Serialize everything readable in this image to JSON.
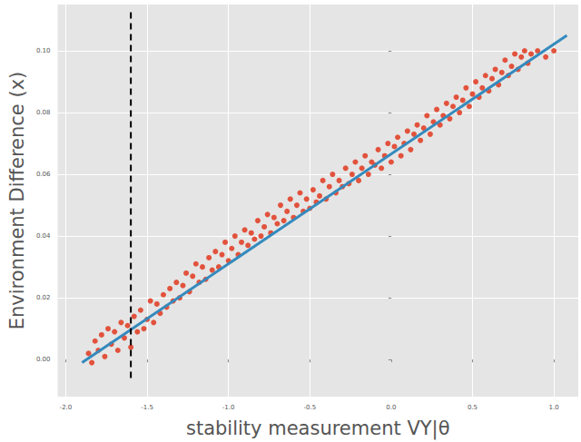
{
  "chart_data": {
    "type": "scatter",
    "x_label": "stability measurement VY|θ",
    "y_label": "Environment Difference (x)",
    "xlim": [
      -2.05,
      1.15
    ],
    "ylim": [
      -0.012,
      0.115
    ],
    "xticks": [
      {
        "value": -2.0,
        "label": "-2.0"
      },
      {
        "value": -1.5,
        "label": "-1.5"
      },
      {
        "value": -1.0,
        "label": "-1.0"
      },
      {
        "value": -0.5,
        "label": "-0.5"
      },
      {
        "value": 0,
        "label": "0.0"
      },
      {
        "value": 0.5,
        "label": "0.5"
      },
      {
        "value": 1.0,
        "label": "1.0"
      }
    ],
    "yticks": [
      {
        "value": 0,
        "label": "0.00"
      },
      {
        "value": 0.02,
        "label": "0.02"
      },
      {
        "value": 0.04,
        "label": "0.04"
      },
      {
        "value": 0.06,
        "label": "0.06"
      },
      {
        "value": 0.08,
        "label": "0.08"
      },
      {
        "value": 0.1,
        "label": "0.10"
      }
    ],
    "grid": true,
    "series": [
      {
        "type": "scatter",
        "color": "#e24a33",
        "marker": "circle",
        "values": [
          [
            -1.86,
            0.002
          ],
          [
            -1.84,
            -0.001
          ],
          [
            -1.82,
            0.006
          ],
          [
            -1.8,
            0.003
          ],
          [
            -1.78,
            0.008
          ],
          [
            -1.76,
            0.001
          ],
          [
            -1.74,
            0.01
          ],
          [
            -1.72,
            0.005
          ],
          [
            -1.7,
            0.009
          ],
          [
            -1.68,
            0.003
          ],
          [
            -1.66,
            0.012
          ],
          [
            -1.64,
            0.007
          ],
          [
            -1.62,
            0.011
          ],
          [
            -1.6,
            0.004
          ],
          [
            -1.58,
            0.014
          ],
          [
            -1.56,
            0.009
          ],
          [
            -1.54,
            0.016
          ],
          [
            -1.52,
            0.01
          ],
          [
            -1.5,
            0.013
          ],
          [
            -1.48,
            0.019
          ],
          [
            -1.46,
            0.012
          ],
          [
            -1.44,
            0.018
          ],
          [
            -1.42,
            0.015
          ],
          [
            -1.4,
            0.021
          ],
          [
            -1.38,
            0.017
          ],
          [
            -1.36,
            0.023
          ],
          [
            -1.34,
            0.019
          ],
          [
            -1.32,
            0.025
          ],
          [
            -1.3,
            0.02
          ],
          [
            -1.28,
            0.024
          ],
          [
            -1.26,
            0.028
          ],
          [
            -1.24,
            0.022
          ],
          [
            -1.22,
            0.027
          ],
          [
            -1.2,
            0.031
          ],
          [
            -1.18,
            0.025
          ],
          [
            -1.16,
            0.03
          ],
          [
            -1.14,
            0.026
          ],
          [
            -1.12,
            0.033
          ],
          [
            -1.1,
            0.029
          ],
          [
            -1.08,
            0.035
          ],
          [
            -1.06,
            0.03
          ],
          [
            -1.04,
            0.034
          ],
          [
            -1.02,
            0.038
          ],
          [
            -1.0,
            0.032
          ],
          [
            -0.98,
            0.036
          ],
          [
            -0.96,
            0.04
          ],
          [
            -0.94,
            0.034
          ],
          [
            -0.92,
            0.038
          ],
          [
            -0.9,
            0.042
          ],
          [
            -0.88,
            0.037
          ],
          [
            -0.86,
            0.041
          ],
          [
            -0.84,
            0.039
          ],
          [
            -0.82,
            0.045
          ],
          [
            -0.8,
            0.04
          ],
          [
            -0.78,
            0.043
          ],
          [
            -0.76,
            0.047
          ],
          [
            -0.74,
            0.041
          ],
          [
            -0.72,
            0.046
          ],
          [
            -0.7,
            0.044
          ],
          [
            -0.68,
            0.05
          ],
          [
            -0.66,
            0.045
          ],
          [
            -0.64,
            0.048
          ],
          [
            -0.62,
            0.052
          ],
          [
            -0.6,
            0.046
          ],
          [
            -0.58,
            0.05
          ],
          [
            -0.56,
            0.054
          ],
          [
            -0.54,
            0.048
          ],
          [
            -0.52,
            0.052
          ],
          [
            -0.5,
            0.049
          ],
          [
            -0.48,
            0.055
          ],
          [
            -0.46,
            0.051
          ],
          [
            -0.44,
            0.053
          ],
          [
            -0.42,
            0.058
          ],
          [
            -0.4,
            0.052
          ],
          [
            -0.38,
            0.056
          ],
          [
            -0.36,
            0.06
          ],
          [
            -0.34,
            0.054
          ],
          [
            -0.32,
            0.058
          ],
          [
            -0.3,
            0.056
          ],
          [
            -0.28,
            0.062
          ],
          [
            -0.26,
            0.057
          ],
          [
            -0.24,
            0.06
          ],
          [
            -0.22,
            0.064
          ],
          [
            -0.2,
            0.058
          ],
          [
            -0.18,
            0.062
          ],
          [
            -0.16,
            0.066
          ],
          [
            -0.14,
            0.06
          ],
          [
            -0.12,
            0.064
          ],
          [
            -0.1,
            0.063
          ],
          [
            -0.08,
            0.068
          ],
          [
            -0.06,
            0.062
          ],
          [
            -0.04,
            0.066
          ],
          [
            -0.02,
            0.07
          ],
          [
            0.0,
            0.064
          ],
          [
            0.02,
            0.069
          ],
          [
            0.04,
            0.072
          ],
          [
            0.06,
            0.066
          ],
          [
            0.08,
            0.07
          ],
          [
            0.1,
            0.074
          ],
          [
            0.12,
            0.068
          ],
          [
            0.14,
            0.073
          ],
          [
            0.16,
            0.076
          ],
          [
            0.18,
            0.071
          ],
          [
            0.2,
            0.075
          ],
          [
            0.22,
            0.079
          ],
          [
            0.24,
            0.073
          ],
          [
            0.26,
            0.077
          ],
          [
            0.28,
            0.081
          ],
          [
            0.3,
            0.076
          ],
          [
            0.32,
            0.079
          ],
          [
            0.34,
            0.083
          ],
          [
            0.36,
            0.078
          ],
          [
            0.38,
            0.082
          ],
          [
            0.4,
            0.085
          ],
          [
            0.42,
            0.08
          ],
          [
            0.44,
            0.084
          ],
          [
            0.46,
            0.088
          ],
          [
            0.48,
            0.082
          ],
          [
            0.5,
            0.086
          ],
          [
            0.52,
            0.09
          ],
          [
            0.54,
            0.085
          ],
          [
            0.56,
            0.088
          ],
          [
            0.58,
            0.092
          ],
          [
            0.6,
            0.087
          ],
          [
            0.62,
            0.091
          ],
          [
            0.64,
            0.094
          ],
          [
            0.66,
            0.089
          ],
          [
            0.68,
            0.093
          ],
          [
            0.7,
            0.097
          ],
          [
            0.72,
            0.092
          ],
          [
            0.74,
            0.095
          ],
          [
            0.76,
            0.099
          ],
          [
            0.78,
            0.094
          ],
          [
            0.8,
            0.098
          ],
          [
            0.82,
            0.1
          ],
          [
            0.84,
            0.096
          ],
          [
            0.86,
            0.099
          ],
          [
            0.9,
            0.1
          ],
          [
            0.95,
            0.098
          ],
          [
            1.0,
            0.1
          ]
        ]
      },
      {
        "type": "line",
        "color": "#348abd",
        "line_style": "solid",
        "values": [
          [
            -1.9,
            -0.001
          ],
          [
            1.08,
            0.105
          ]
        ]
      },
      {
        "type": "line",
        "color": "#000000",
        "line_style": "dashed",
        "values": [
          [
            -1.6,
            -0.006
          ],
          [
            -1.6,
            0.113
          ]
        ]
      }
    ]
  }
}
